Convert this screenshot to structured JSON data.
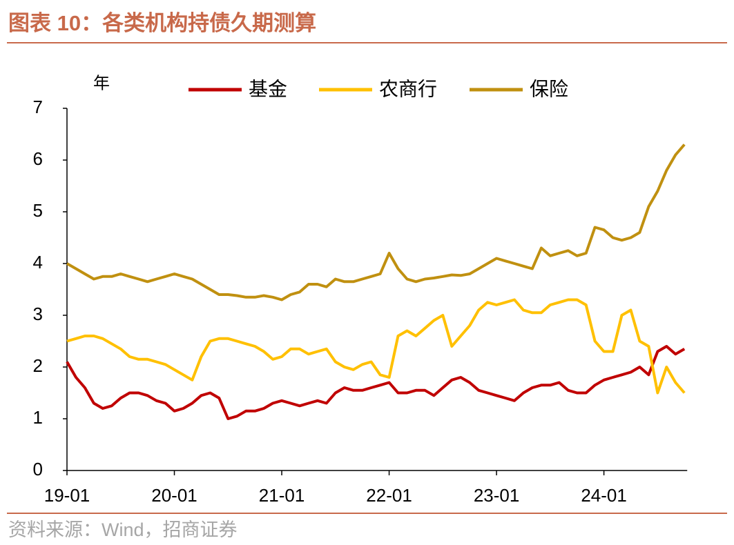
{
  "chart_data": {
    "type": "line",
    "title": "图表 10：各类机构持债久期测算",
    "source": "资料来源：Wind，招商证券",
    "y_label": "年",
    "categories": [
      "19-01",
      null,
      null,
      null,
      null,
      null,
      null,
      null,
      null,
      null,
      null,
      null,
      "20-01",
      null,
      null,
      null,
      null,
      null,
      null,
      null,
      null,
      null,
      null,
      null,
      "21-01",
      null,
      null,
      null,
      null,
      null,
      null,
      null,
      null,
      null,
      null,
      null,
      "22-01",
      null,
      null,
      null,
      null,
      null,
      null,
      null,
      null,
      null,
      null,
      null,
      "23-01",
      null,
      null,
      null,
      null,
      null,
      null,
      null,
      null,
      null,
      null,
      null,
      "24-01",
      null,
      null,
      null,
      null,
      null,
      null,
      null,
      null,
      null
    ],
    "series": [
      {
        "name": "基金",
        "color": "#c00000",
        "values": [
          2.1,
          1.8,
          1.6,
          1.3,
          1.2,
          1.25,
          1.4,
          1.5,
          1.5,
          1.45,
          1.35,
          1.3,
          1.15,
          1.2,
          1.3,
          1.45,
          1.5,
          1.4,
          1.0,
          1.05,
          1.15,
          1.15,
          1.2,
          1.3,
          1.35,
          1.3,
          1.25,
          1.3,
          1.35,
          1.3,
          1.5,
          1.6,
          1.55,
          1.55,
          1.6,
          1.65,
          1.7,
          1.5,
          1.5,
          1.55,
          1.55,
          1.45,
          1.6,
          1.75,
          1.8,
          1.7,
          1.55,
          1.5,
          1.45,
          1.4,
          1.35,
          1.5,
          1.6,
          1.65,
          1.65,
          1.7,
          1.55,
          1.5,
          1.5,
          1.65,
          1.75,
          1.8,
          1.85,
          1.9,
          2.0,
          1.85,
          2.3,
          2.4,
          2.25,
          2.35
        ]
      },
      {
        "name": "农商行",
        "color": "#ffc000",
        "values": [
          2.5,
          2.55,
          2.6,
          2.6,
          2.55,
          2.45,
          2.35,
          2.2,
          2.15,
          2.15,
          2.1,
          2.05,
          1.95,
          1.85,
          1.75,
          2.2,
          2.5,
          2.55,
          2.55,
          2.5,
          2.45,
          2.4,
          2.3,
          2.15,
          2.2,
          2.35,
          2.35,
          2.25,
          2.3,
          2.35,
          2.1,
          2.0,
          1.95,
          2.05,
          2.1,
          1.85,
          1.8,
          2.6,
          2.7,
          2.6,
          2.75,
          2.9,
          3.0,
          2.4,
          2.6,
          2.8,
          3.1,
          3.25,
          3.2,
          3.25,
          3.3,
          3.1,
          3.05,
          3.05,
          3.2,
          3.25,
          3.3,
          3.3,
          3.2,
          2.5,
          2.3,
          2.3,
          3.0,
          3.1,
          2.5,
          2.4,
          1.5,
          2.0,
          1.7,
          1.5
        ]
      },
      {
        "name": "保险",
        "color": "#c09010",
        "values": [
          4.0,
          3.9,
          3.8,
          3.7,
          3.75,
          3.75,
          3.8,
          3.75,
          3.7,
          3.65,
          3.7,
          3.75,
          3.8,
          3.75,
          3.7,
          3.6,
          3.5,
          3.4,
          3.4,
          3.38,
          3.35,
          3.35,
          3.38,
          3.35,
          3.3,
          3.4,
          3.45,
          3.6,
          3.6,
          3.55,
          3.7,
          3.65,
          3.65,
          3.7,
          3.75,
          3.8,
          4.2,
          3.9,
          3.7,
          3.65,
          3.7,
          3.72,
          3.75,
          3.78,
          3.77,
          3.8,
          3.9,
          4.0,
          4.1,
          4.05,
          4.0,
          3.95,
          3.9,
          4.3,
          4.15,
          4.2,
          4.25,
          4.15,
          4.2,
          4.7,
          4.65,
          4.5,
          4.45,
          4.5,
          4.6,
          5.1,
          5.4,
          5.8,
          6.1,
          6.3
        ]
      }
    ],
    "ylim": [
      0,
      7
    ],
    "yticks": [
      0,
      1,
      2,
      3,
      4,
      5,
      6,
      7
    ],
    "grid": false
  }
}
